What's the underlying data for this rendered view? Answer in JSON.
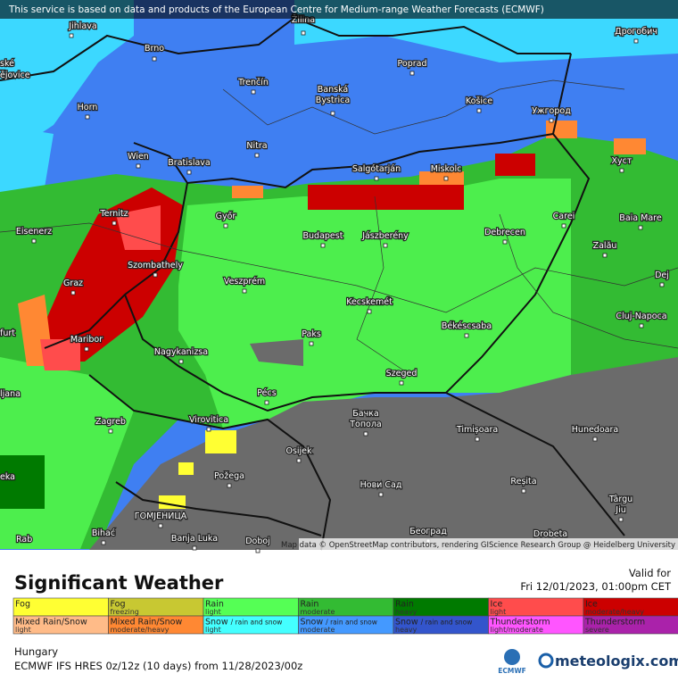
{
  "banner": "This service is based on data and products of the European Centre for Medium-range Weather Forecasts (ECMWF)",
  "attribution": "Map data © OpenStreetMap contributors, rendering GIScience Research Group @ Heidelberg University",
  "cities": [
    "Jihlava",
    "Brno",
    "Žilina",
    "Poprad",
    "Дрогобич",
    "ské",
    "ějovice",
    "Trenčín",
    "Banská",
    "Bystrica",
    "Košice",
    "Ужгород",
    "Horn",
    "Nitra",
    "Wien",
    "Bratislava",
    "Salgótarján",
    "Miskolc",
    "Хуст",
    "Ternitz",
    "Győr",
    "Carei",
    "Baia Mare",
    "Eisenerz",
    "Budapest",
    "Jászberény",
    "Debrecen",
    "Zalău",
    "Szombathely",
    "Dej",
    "Graz",
    "Veszprém",
    "Kecskemét",
    "Cluj-Napoca",
    "furt",
    "Békéscsaba",
    "Paks",
    "Maribor",
    "Nagykanizsa",
    "Szeged",
    "ljana",
    "Pécs",
    "Бачка",
    "Топола",
    "Zagreb",
    "Virovitica",
    "Timișoara",
    "Hunedoara",
    "Osijek",
    "eka",
    "Požega",
    "Нови Сад",
    "Reșita",
    "Târgu",
    "Jiu",
    "ГОМЈЕНИЦА",
    "Bihać",
    "Banja Luka",
    "Doboj",
    "Београд",
    "Drobeta",
    "Rab"
  ],
  "legend": {
    "title": "Significant Weather",
    "items": [
      {
        "label": "Fog",
        "color": "#ffff33"
      },
      {
        "label": "Fog",
        "level": "freezing",
        "color": "#c8c832"
      },
      {
        "label": "Rain",
        "level": "light",
        "color": "#55ff55"
      },
      {
        "label": "Rain",
        "level": "moderate",
        "color": "#33bb33"
      },
      {
        "label": "Rain",
        "level": "heavy",
        "color": "#007a00"
      },
      {
        "label": "Ice",
        "level": "light",
        "color": "#ff4c4c"
      },
      {
        "label": "Ice",
        "level": "moderate/heavy",
        "color": "#cc0000"
      },
      {
        "label": "Mixed Rain/Snow",
        "level": "light",
        "color": "#ffbb88"
      },
      {
        "label": "Mixed Rain/Snow",
        "level": "moderate/heavy",
        "color": "#ff8833"
      },
      {
        "label": "Snow",
        "note": "/ rain and snow",
        "level": "light",
        "color": "#44ffff"
      },
      {
        "label": "Snow",
        "note": "/ rain and snow",
        "level": "moderate",
        "color": "#4499ff"
      },
      {
        "label": "Snow",
        "note": "/ rain and snow",
        "level": "heavy",
        "color": "#3355cc"
      },
      {
        "label": "Thunderstorm",
        "level": "light/moderate",
        "color": "#ff55ff"
      },
      {
        "label": "Thunderstorm",
        "level": "severe",
        "color": "#aa22aa"
      }
    ]
  },
  "valid_label": "Valid for",
  "valid_time": "Fri 12/01/2023, 01:00pm CET",
  "region": "Hungary",
  "model": "ECMWF IFS HRES 0z/12z (10 days) from 11/28/2023/00z",
  "logo_ecmwf": "ECMWF",
  "logo_site": "meteologix.com"
}
